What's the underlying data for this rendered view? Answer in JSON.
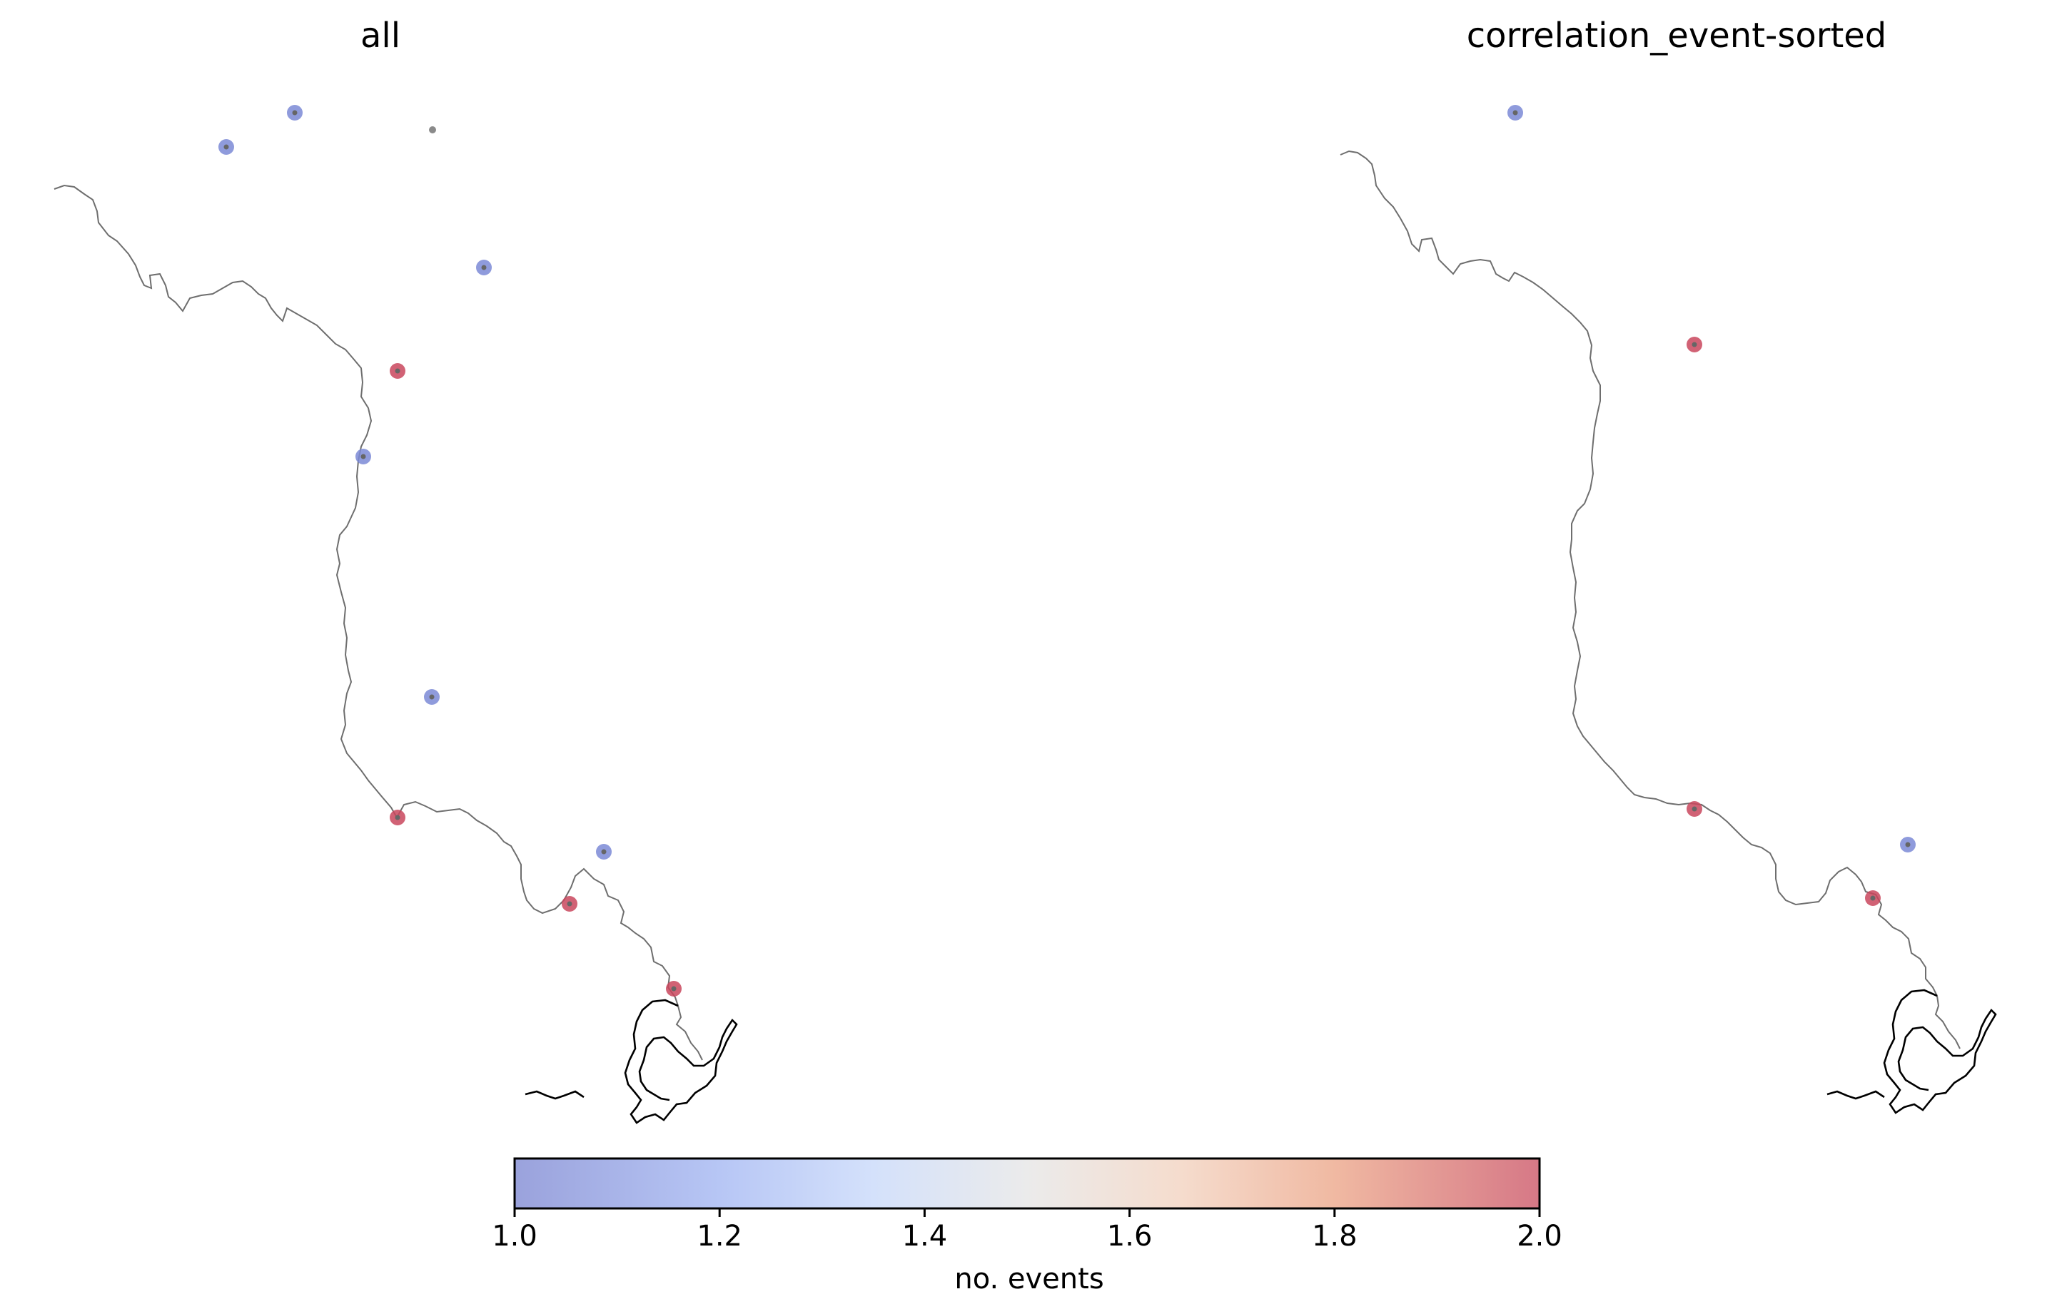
{
  "panels": [
    {
      "title": "all",
      "stations": [
        {
          "id": "a1",
          "value": 1
        },
        {
          "id": "a2",
          "value": 1
        },
        {
          "id": "a3",
          "value": 1
        },
        {
          "id": "a4",
          "value": 2
        },
        {
          "id": "a5",
          "value": 1
        },
        {
          "id": "a6",
          "value": 1
        },
        {
          "id": "a7",
          "value": 2
        },
        {
          "id": "a8",
          "value": 1
        },
        {
          "id": "a9",
          "value": 2
        },
        {
          "id": "a10",
          "value": 2
        }
      ]
    },
    {
      "title": "correlation_event-sorted",
      "stations": [
        {
          "id": "b1",
          "value": 1
        },
        {
          "id": "b2",
          "value": 2
        },
        {
          "id": "b3",
          "value": 2
        },
        {
          "id": "b4",
          "value": 1
        },
        {
          "id": "b5",
          "value": 2
        }
      ]
    }
  ],
  "colorbar": {
    "label": "no. events",
    "min": 1.0,
    "max": 2.0,
    "ticks": [
      "1.0",
      "1.2",
      "1.4",
      "1.6",
      "1.8",
      "2.0"
    ],
    "colormap": "coolwarm",
    "low_color": "#7b89d6",
    "mid_color": "#dddcdc",
    "high_color": "#c9475d"
  },
  "colors": {
    "coastline": "#6e6e6e",
    "inlet_outline": "#000000"
  }
}
